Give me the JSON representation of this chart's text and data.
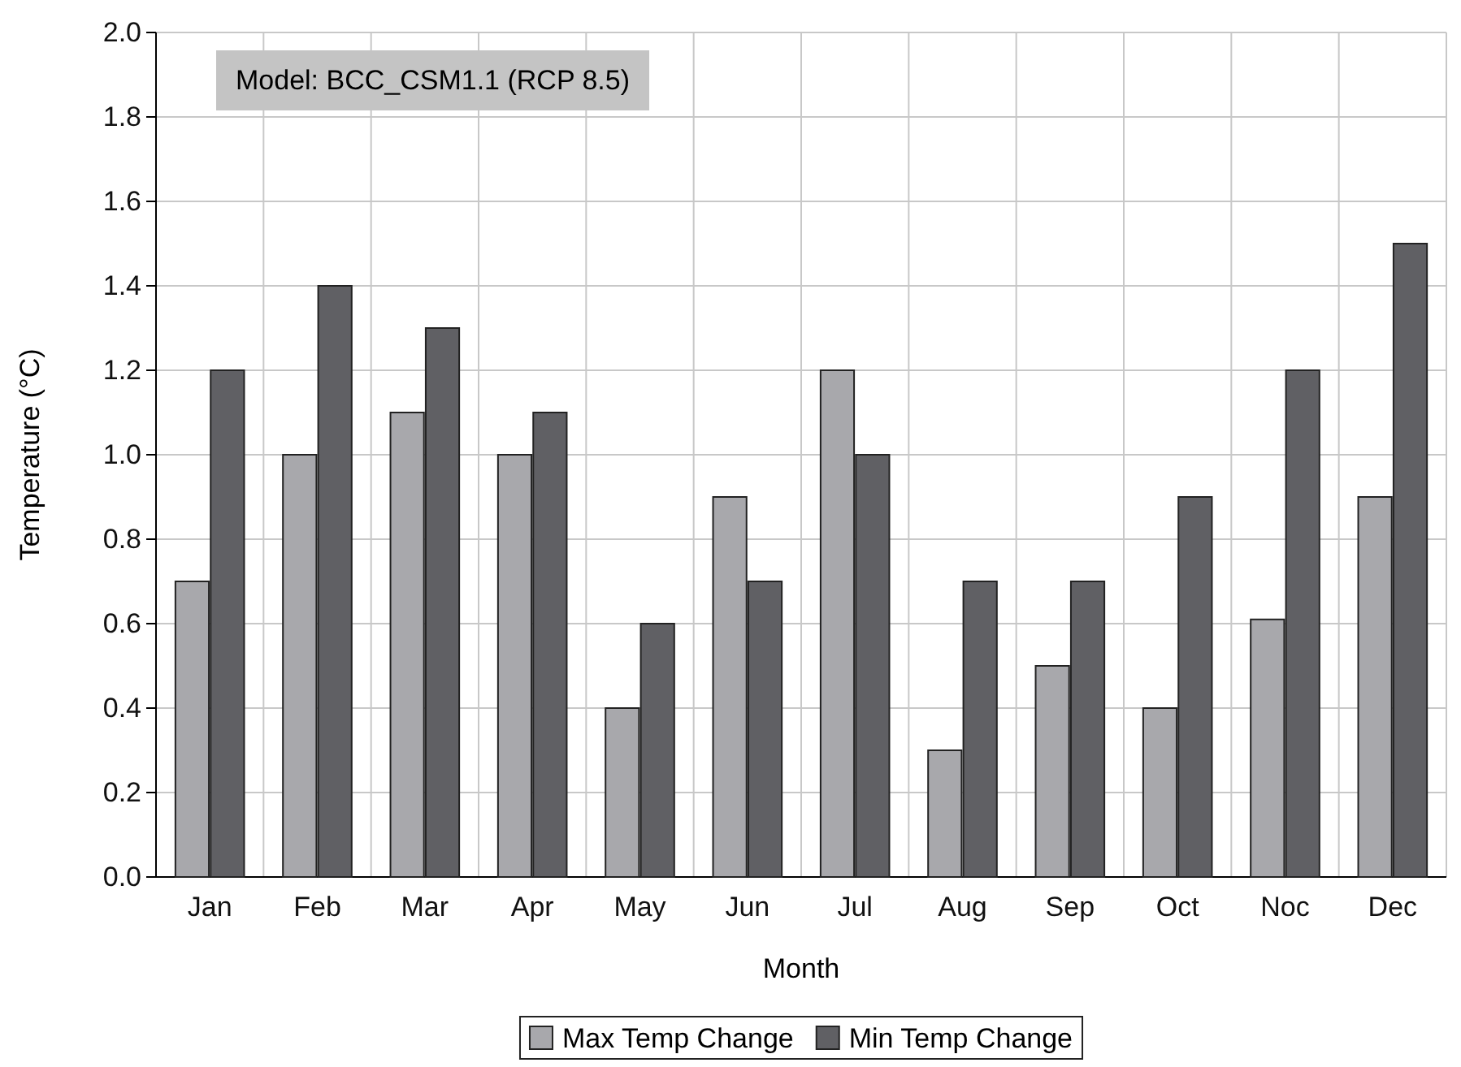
{
  "chart_data": {
    "type": "bar",
    "xlabel": "Month",
    "ylabel": "Temperature (°C)",
    "categories": [
      "Jan",
      "Feb",
      "Mar",
      "Apr",
      "May",
      "Jun",
      "Jul",
      "Aug",
      "Sep",
      "Oct",
      "Noc",
      "Dec"
    ],
    "series": [
      {
        "name": "Max Temp Change",
        "color": "#a8a8ac",
        "values": [
          0.7,
          1.0,
          1.1,
          1.0,
          0.4,
          0.9,
          1.2,
          0.3,
          0.5,
          0.4,
          0.61,
          0.9
        ]
      },
      {
        "name": "Min Temp Change",
        "color": "#606064",
        "values": [
          1.2,
          1.4,
          1.3,
          1.1,
          0.6,
          0.7,
          1.0,
          0.7,
          0.7,
          0.9,
          1.2,
          1.5
        ]
      }
    ],
    "ylim": [
      0,
      2.0
    ],
    "yticks": [
      {
        "value": 0,
        "label": "0.0"
      },
      {
        "value": 0.2,
        "label": "0.2"
      },
      {
        "value": 0.4,
        "label": "0.4"
      },
      {
        "value": 0.6,
        "label": "0.6"
      },
      {
        "value": 0.8,
        "label": "0.8"
      },
      {
        "value": 1.0,
        "label": "1.0"
      },
      {
        "value": 1.2,
        "label": "1.2"
      },
      {
        "value": 1.4,
        "label": "1.4"
      },
      {
        "value": 1.6,
        "label": "1.6"
      },
      {
        "value": 1.8,
        "label": "1.8"
      },
      {
        "value": 2.0,
        "label": "2.0"
      }
    ],
    "grid": true,
    "legend": "bottom",
    "annotations": [
      "Model: BCC_CSM1.1 (RCP 8.5)"
    ]
  }
}
